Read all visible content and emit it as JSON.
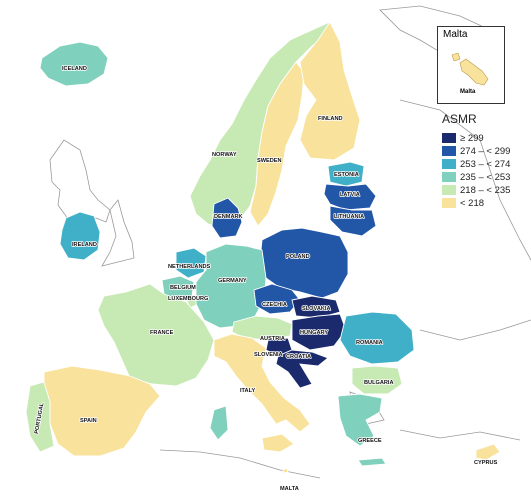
{
  "legend": {
    "title": "ASMR",
    "items": [
      {
        "label": "≥ 299",
        "color": "#1a2a6c"
      },
      {
        "label": "274 – < 299",
        "color": "#2257a8"
      },
      {
        "label": "253 – < 274",
        "color": "#3fb0c8"
      },
      {
        "label": "235 – < 253",
        "color": "#7fd0bc"
      },
      {
        "label": "218 – < 235",
        "color": "#c7e9b4"
      },
      {
        "label": "< 218",
        "color": "#f9e29c"
      }
    ]
  },
  "inset": {
    "title": "Malta",
    "label": "Malta",
    "color": "#f9e29c"
  },
  "countries": [
    {
      "name": "ICELAND",
      "color": "#7fd0bc"
    },
    {
      "name": "NORWAY",
      "color": "#c7e9b4"
    },
    {
      "name": "SWEDEN",
      "color": "#f9e29c"
    },
    {
      "name": "FINLAND",
      "color": "#f9e29c"
    },
    {
      "name": "ESTONIA",
      "color": "#3fb0c8"
    },
    {
      "name": "LATVIA",
      "color": "#2257a8"
    },
    {
      "name": "LITHUANIA",
      "color": "#2257a8"
    },
    {
      "name": "DENMARK",
      "color": "#2257a8"
    },
    {
      "name": "IRELAND",
      "color": "#3fb0c8"
    },
    {
      "name": "NETHERLANDS",
      "color": "#3fb0c8"
    },
    {
      "name": "BELGIUM",
      "color": "#7fd0bc"
    },
    {
      "name": "LUXEMBOURG",
      "color": "#c7e9b4"
    },
    {
      "name": "GERMANY",
      "color": "#7fd0bc"
    },
    {
      "name": "POLAND",
      "color": "#2257a8"
    },
    {
      "name": "CZECHIA",
      "color": "#2257a8"
    },
    {
      "name": "SLOVAKIA",
      "color": "#1a2a6c"
    },
    {
      "name": "AUSTRIA",
      "color": "#c7e9b4"
    },
    {
      "name": "HUNGARY",
      "color": "#1a2a6c"
    },
    {
      "name": "SLOVENIA",
      "color": "#1a2a6c"
    },
    {
      "name": "CROATIA",
      "color": "#1a2a6c"
    },
    {
      "name": "ROMANIA",
      "color": "#3fb0c8"
    },
    {
      "name": "BULGARIA",
      "color": "#c7e9b4"
    },
    {
      "name": "FRANCE",
      "color": "#c7e9b4"
    },
    {
      "name": "ITALY",
      "color": "#f9e29c"
    },
    {
      "name": "SPAIN",
      "color": "#f9e29c"
    },
    {
      "name": "PORTUGAL",
      "color": "#c7e9b4"
    },
    {
      "name": "GREECE",
      "color": "#7fd0bc"
    },
    {
      "name": "CYPRUS",
      "color": "#f9e29c"
    },
    {
      "name": "MALTA",
      "color": "#f9e29c"
    }
  ]
}
